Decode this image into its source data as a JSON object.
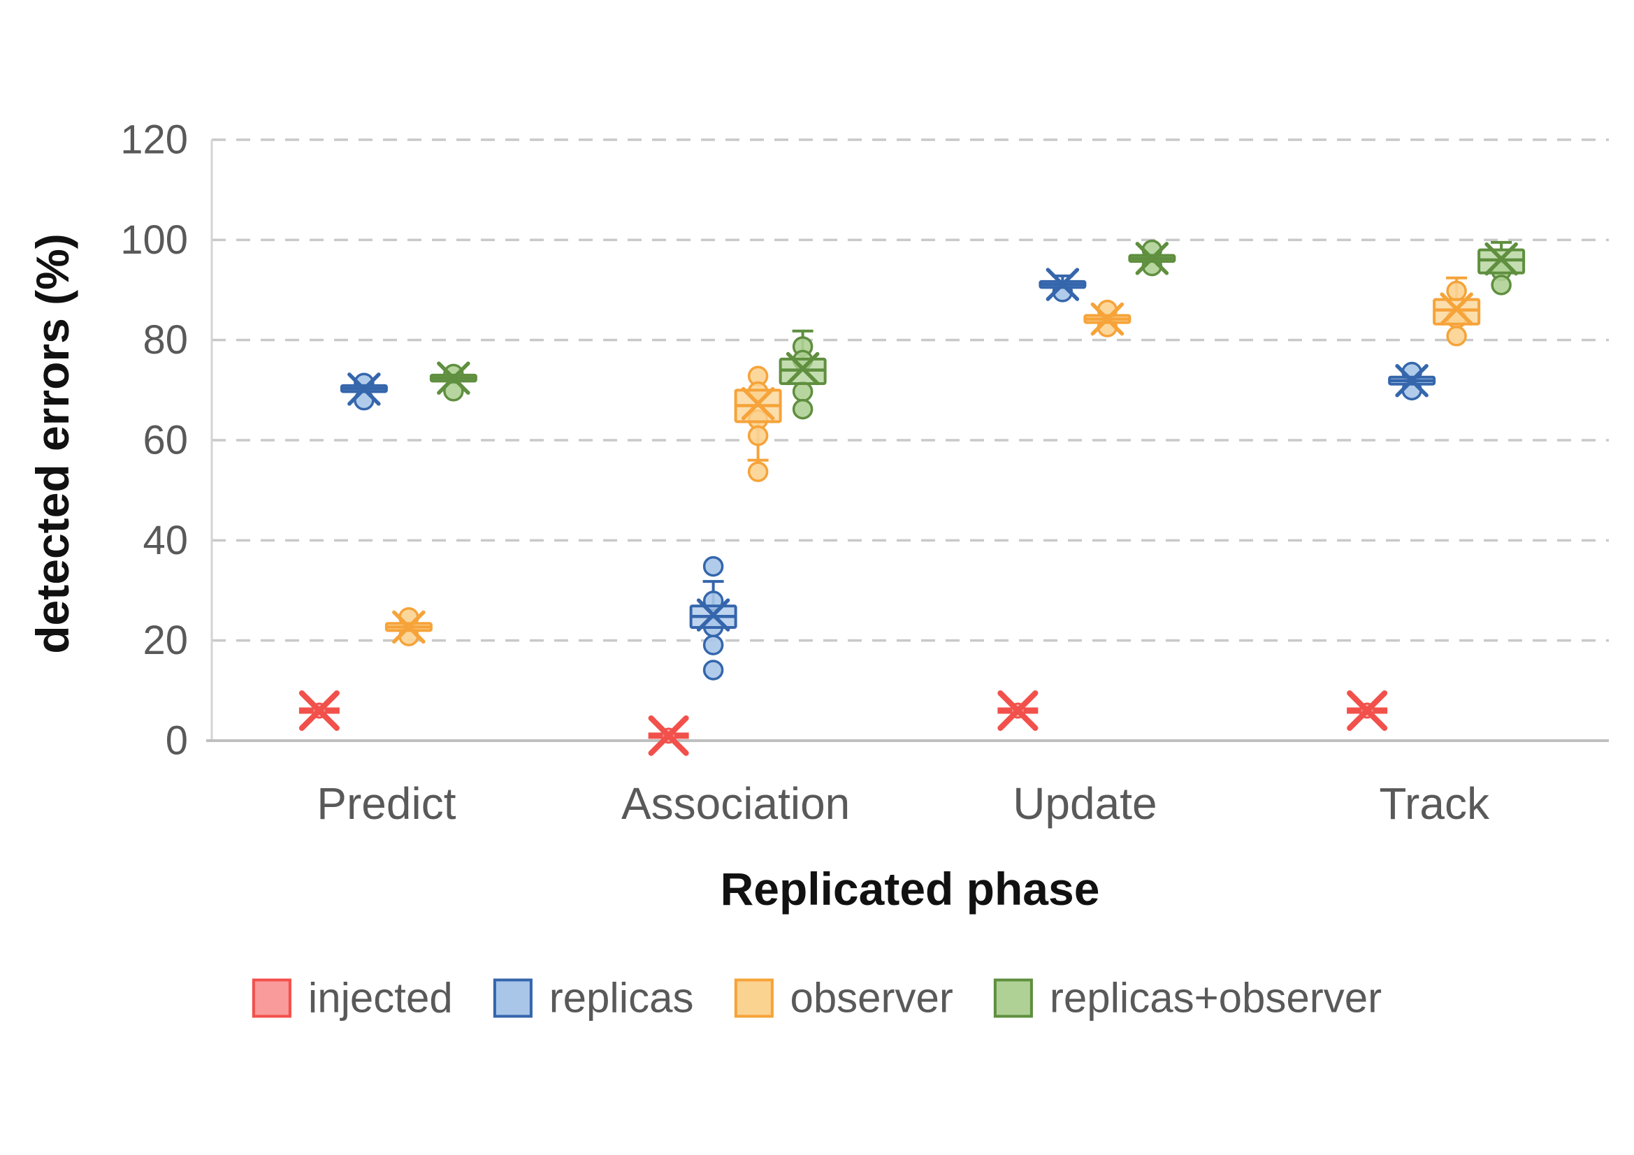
{
  "axes": {
    "y_title": "detected errors (%)",
    "x_title": "Replicated phase",
    "y_ticks": [
      0,
      20,
      40,
      60,
      80,
      100,
      120
    ]
  },
  "colors": {
    "grid": "#C9C9C9",
    "axis": "#BFBFBF",
    "axis_left": "#D3D3D3",
    "tick_text": "#595959",
    "category_text": "#595959",
    "title_text": "#111111"
  },
  "chart_data": {
    "type": "boxplot",
    "title": "",
    "xlabel": "Replicated phase",
    "ylabel": "detected errors (%)",
    "ylim": [
      0,
      120
    ],
    "y_tick_step": 20,
    "grid": "horizontal-dashed",
    "legend_position": "bottom",
    "categories": [
      "Predict",
      "Association",
      "Update",
      "Track"
    ],
    "series": [
      {
        "name": "injected",
        "stroke": "#F2504B",
        "fill": "#FA9B9B",
        "marker": "x-asterisk",
        "boxes": [
          {
            "mean": 6,
            "median": 6,
            "points": []
          },
          {
            "mean": 1,
            "median": 1,
            "points": []
          },
          {
            "mean": 6,
            "median": 6,
            "points": []
          },
          {
            "mean": 6,
            "median": 6,
            "points": []
          }
        ]
      },
      {
        "name": "replicas",
        "stroke": "#3566AC",
        "fill": "#A9C6E9",
        "marker": "box-x-circles",
        "boxes": [
          {
            "mean": 70.2,
            "median": 70.3,
            "q1": 69.7,
            "q3": 70.9,
            "points": [
              71.4,
              68.0
            ]
          },
          {
            "mean": 25.1,
            "median": 24.8,
            "q1": 22.6,
            "q3": 26.9,
            "whisker_high": 31.8,
            "points": [
              34.8,
              27.9,
              22.7,
              19.1,
              14.1
            ]
          },
          {
            "mean": 91.1,
            "median": 91.1,
            "q1": 90.5,
            "q3": 91.7,
            "whisker_high": 92.8,
            "points": [
              89.6
            ]
          },
          {
            "mean": 71.9,
            "median": 71.9,
            "q1": 71.2,
            "q3": 72.6,
            "points": [
              73.6,
              70.0
            ]
          }
        ]
      },
      {
        "name": "observer",
        "stroke": "#F6A339",
        "fill": "#FBD391",
        "marker": "box-x-circles",
        "boxes": [
          {
            "mean": 22.7,
            "median": 22.7,
            "q1": 22.0,
            "q3": 23.4,
            "points": [
              24.6,
              20.9
            ]
          },
          {
            "mean": 67.3,
            "median": 66.9,
            "q1": 63.7,
            "q3": 70.0,
            "whisker_low": 56.0,
            "points": [
              72.8,
              69.7,
              64.1,
              60.9,
              53.7
            ]
          },
          {
            "mean": 84.2,
            "median": 84.2,
            "q1": 83.5,
            "q3": 84.9,
            "points": [
              86.0,
              82.6
            ]
          },
          {
            "mean": 86.2,
            "median": 86.0,
            "q1": 83.2,
            "q3": 88.1,
            "whisker_high": 92.4,
            "points": [
              89.8,
              84.3,
              80.8
            ]
          }
        ]
      },
      {
        "name": "replicas+observer",
        "stroke": "#5F8F3F",
        "fill": "#AFD195",
        "marker": "box-x-circles",
        "boxes": [
          {
            "mean": 72.4,
            "median": 72.4,
            "q1": 71.8,
            "q3": 73.0,
            "points": [
              73.2,
              69.8
            ]
          },
          {
            "mean": 74.3,
            "median": 74.0,
            "q1": 71.3,
            "q3": 76.2,
            "whisker_high": 81.8,
            "points": [
              78.7,
              76.0,
              69.7,
              66.2
            ]
          },
          {
            "mean": 96.3,
            "median": 96.3,
            "q1": 95.7,
            "q3": 96.9,
            "points": [
              98.0,
              94.8
            ]
          },
          {
            "mean": 96.2,
            "median": 96.0,
            "q1": 93.4,
            "q3": 98.0,
            "whisker_high": 99.5,
            "points": [
              93.8,
              91.0
            ]
          }
        ]
      }
    ]
  }
}
